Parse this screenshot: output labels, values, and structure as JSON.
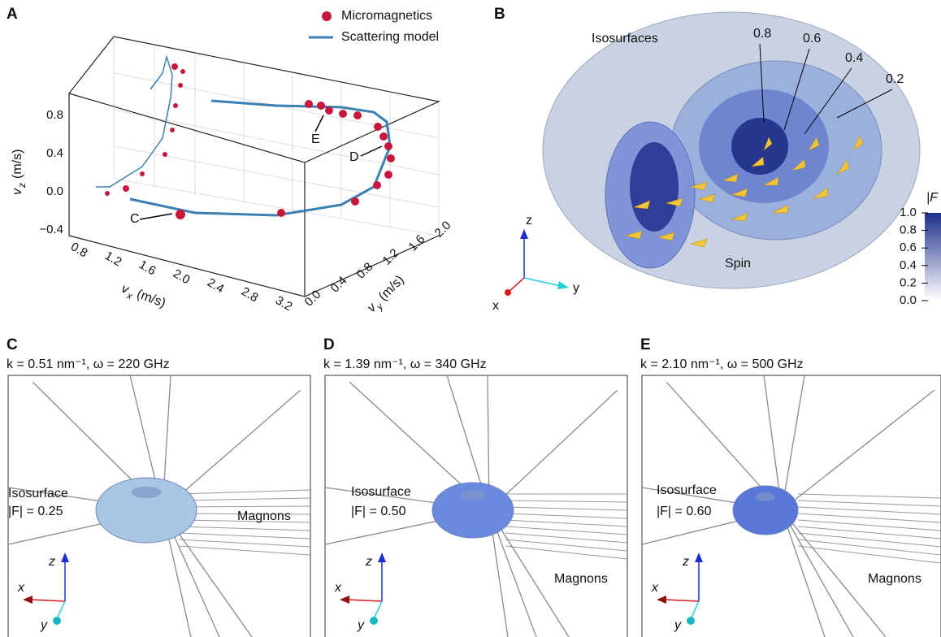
{
  "panels": [
    {
      "label": "A",
      "legend": [
        "Micromagnetics",
        "Scattering model"
      ],
      "x_axis": {
        "symbol": "v",
        "sub": "x",
        "unit": "(m/s)",
        "ticks": [
          "0.8",
          "1.2",
          "1.6",
          "2.0",
          "2.4",
          "2.8",
          "3.2"
        ]
      },
      "y_axis": {
        "symbol": "v",
        "sub": "y",
        "unit": "(m/s)",
        "ticks": [
          "0.0",
          "0.4",
          "0.8",
          "1.2",
          "1.6",
          "2.0"
        ]
      },
      "z_axis": {
        "symbol": "v",
        "sub": "z",
        "unit": "(m/s)",
        "ticks": [
          "0.8",
          "0.4",
          "0.0",
          "−0.4"
        ]
      },
      "annotations": [
        "C",
        "D",
        "E"
      ]
    },
    {
      "label": "B",
      "title": "Isosurfaces",
      "levels": [
        "0.8",
        "0.6",
        "0.4",
        "0.2"
      ],
      "spin": "Spin",
      "axes": [
        "z",
        "y",
        "x"
      ],
      "colorbar": {
        "title": "|F",
        "ticks": [
          "1.0",
          "0.8",
          "0.6",
          "0.4",
          "0.2",
          "0.0"
        ]
      }
    },
    {
      "label": "C",
      "caption": "k = 0.51 nm⁻¹, ω = 220 GHz",
      "iso": [
        "Isosurface",
        "|F| = 0.25"
      ],
      "magnons": "Magnons",
      "axes": [
        "z",
        "x",
        "y"
      ]
    },
    {
      "label": "D",
      "caption": "k = 1.39 nm⁻¹, ω = 340 GHz",
      "iso": [
        "Isosurface",
        "|F| = 0.50"
      ],
      "magnons": "Magnons",
      "axes": [
        "z",
        "x",
        "y"
      ]
    },
    {
      "label": "E",
      "caption": "k = 2.10 nm⁻¹, ω = 500 GHz",
      "iso": [
        "Isosurface",
        "|F| = 0.60"
      ],
      "magnons": "Magnons",
      "axes": [
        "z",
        "x",
        "y"
      ]
    }
  ]
}
